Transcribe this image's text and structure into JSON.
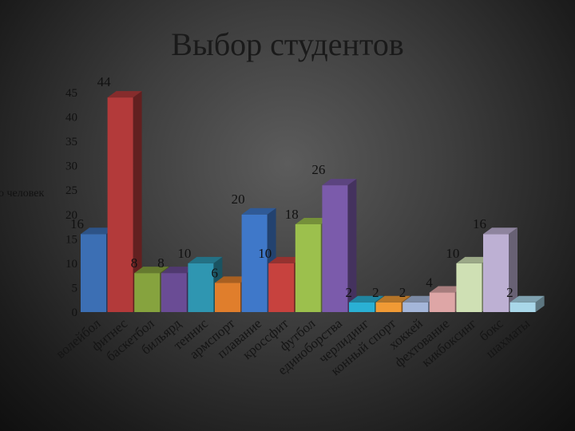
{
  "chart_data": {
    "type": "bar",
    "title": "Выбор студентов",
    "ylabel": "о человек",
    "xlabel": "",
    "ylim": [
      0,
      45
    ],
    "yticks": [
      0,
      5,
      10,
      15,
      20,
      25,
      30,
      35,
      40,
      45
    ],
    "grid": false,
    "legend": "none",
    "style": "3d-columns",
    "categories": [
      "волейбол",
      "фитнес",
      "баскетбол",
      "бильярд",
      "теннис",
      "армспорт",
      "плавание",
      "кроссфит",
      "футбол",
      "единоборства",
      "черлидинг",
      "конный спорт",
      "хоккей",
      "фехтование",
      "кикбоксинг",
      "бокс",
      "шахматы"
    ],
    "values": [
      16,
      44,
      8,
      8,
      10,
      6,
      20,
      10,
      18,
      26,
      2,
      2,
      2,
      4,
      10,
      16,
      2
    ],
    "colors": [
      "#3c6fb4",
      "#b33a3a",
      "#86a33e",
      "#6a4c95",
      "#2f96b1",
      "#e07e2c",
      "#3f78c9",
      "#c7423e",
      "#9cc04d",
      "#7b5bab",
      "#2ab0d4",
      "#f09a35",
      "#a4b6d9",
      "#dea6a6",
      "#cfe0b4",
      "#bdb0d3",
      "#a9d7e9"
    ]
  }
}
